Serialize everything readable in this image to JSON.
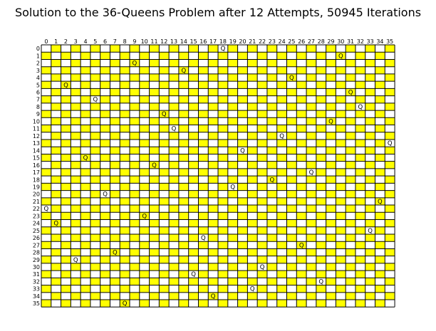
{
  "chart_data": {
    "type": "heatmap",
    "title": "Solution to the 36-Queens Problem after 12 Attempts, 50945 Iterations",
    "n": 36,
    "col_labels": [
      "0",
      "1",
      "2",
      "3",
      "4",
      "5",
      "6",
      "7",
      "8",
      "9",
      "10",
      "11",
      "12",
      "13",
      "14",
      "15",
      "16",
      "17",
      "18",
      "19",
      "20",
      "21",
      "22",
      "23",
      "24",
      "25",
      "26",
      "27",
      "28",
      "29",
      "30",
      "31",
      "32",
      "33",
      "34",
      "35"
    ],
    "row_labels": [
      "0",
      "1",
      "2",
      "3",
      "4",
      "5",
      "6",
      "7",
      "8",
      "9",
      "10",
      "11",
      "12",
      "13",
      "14",
      "15",
      "16",
      "17",
      "18",
      "19",
      "20",
      "21",
      "22",
      "23",
      "24",
      "25",
      "26",
      "27",
      "28",
      "29",
      "30",
      "31",
      "32",
      "33",
      "34",
      "35"
    ],
    "queen_label": "Q",
    "queen_cols_by_row": [
      18,
      30,
      9,
      14,
      25,
      2,
      31,
      5,
      32,
      12,
      29,
      13,
      24,
      35,
      20,
      4,
      11,
      27,
      23,
      19,
      6,
      34,
      0,
      10,
      1,
      33,
      16,
      26,
      7,
      3,
      22,
      15,
      28,
      21,
      17,
      8
    ],
    "colors": {
      "light": "#ffffff",
      "dark": "#ffff00",
      "line": "#000000"
    }
  }
}
